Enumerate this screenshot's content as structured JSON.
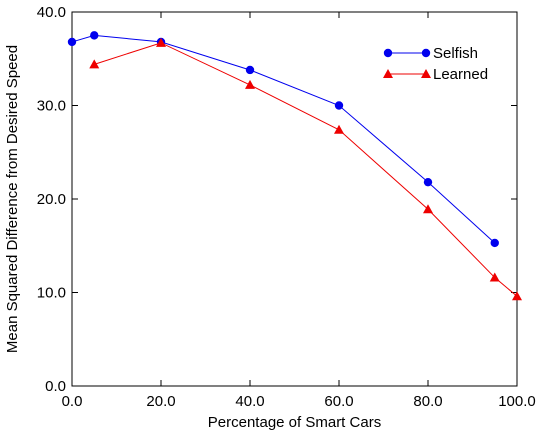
{
  "chart_data": {
    "type": "line",
    "title": "",
    "xlabel": "Percentage of Smart Cars",
    "ylabel": "Mean Squared Difference from Desired Speed",
    "xlim": [
      0,
      100
    ],
    "ylim": [
      0,
      40
    ],
    "x_ticks": [
      0,
      20,
      40,
      60,
      80,
      100
    ],
    "y_ticks": [
      0,
      10,
      20,
      30,
      40
    ],
    "x_tick_labels": [
      "0.0",
      "20.0",
      "40.0",
      "60.0",
      "80.0",
      "100.0"
    ],
    "y_tick_labels": [
      "0.0",
      "10.0",
      "20.0",
      "30.0",
      "40.0"
    ],
    "grid": false,
    "legend_position": "top-right",
    "series": [
      {
        "name": "Selfish",
        "color": "#0000ee",
        "marker": "circle",
        "x": [
          0,
          5,
          20,
          40,
          60,
          80,
          95
        ],
        "y": [
          36.8,
          37.5,
          36.8,
          33.8,
          30.0,
          21.8,
          15.3
        ]
      },
      {
        "name": "Learned",
        "color": "#ee0000",
        "marker": "triangle",
        "x": [
          5,
          20,
          40,
          60,
          80,
          95,
          100
        ],
        "y": [
          34.4,
          36.7,
          32.2,
          27.4,
          18.9,
          11.6,
          9.6
        ]
      }
    ]
  }
}
